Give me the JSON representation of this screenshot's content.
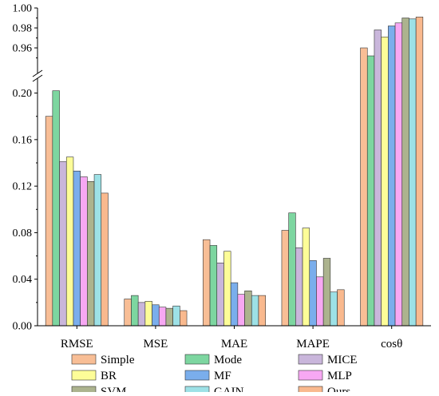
{
  "chart_data": {
    "type": "bar",
    "categories": [
      "RMSE",
      "MSE",
      "MAE",
      "MAPE",
      "cosθ"
    ],
    "series": [
      {
        "name": "Simple",
        "color": "#f8be96",
        "values": [
          0.18,
          0.023,
          0.074,
          0.082,
          0.96
        ]
      },
      {
        "name": "Mode",
        "color": "#7dd6a0",
        "values": [
          0.202,
          0.026,
          0.069,
          0.097,
          0.952
        ]
      },
      {
        "name": "MICE",
        "color": "#c9b6db",
        "values": [
          0.141,
          0.02,
          0.054,
          0.067,
          0.978
        ]
      },
      {
        "name": "BR",
        "color": "#fdfd98",
        "values": [
          0.145,
          0.021,
          0.064,
          0.084,
          0.971
        ]
      },
      {
        "name": "MF",
        "color": "#7aaeec",
        "values": [
          0.133,
          0.018,
          0.037,
          0.056,
          0.982
        ]
      },
      {
        "name": "MLP",
        "color": "#f7a8f3",
        "values": [
          0.128,
          0.016,
          0.027,
          0.042,
          0.985
        ]
      },
      {
        "name": "SVM",
        "color": "#acb38e",
        "values": [
          0.124,
          0.015,
          0.03,
          0.058,
          0.99
        ]
      },
      {
        "name": "GAIN",
        "color": "#9de1e6",
        "values": [
          0.13,
          0.017,
          0.026,
          0.029,
          0.989
        ]
      },
      {
        "name": "Ours",
        "color": "#f9b98e",
        "values": [
          0.114,
          0.013,
          0.026,
          0.031,
          0.991
        ]
      }
    ],
    "y_lower": {
      "range": [
        0.0,
        0.21
      ],
      "ticks": [
        "0.00",
        "0.04",
        "0.08",
        "0.12",
        "0.16",
        "0.20"
      ]
    },
    "y_upper": {
      "range": [
        0.94,
        1.0
      ],
      "ticks": [
        "0.96",
        "0.98",
        "1.00"
      ]
    },
    "axis_break": true,
    "grid": false,
    "legend_placement": "bottom"
  }
}
